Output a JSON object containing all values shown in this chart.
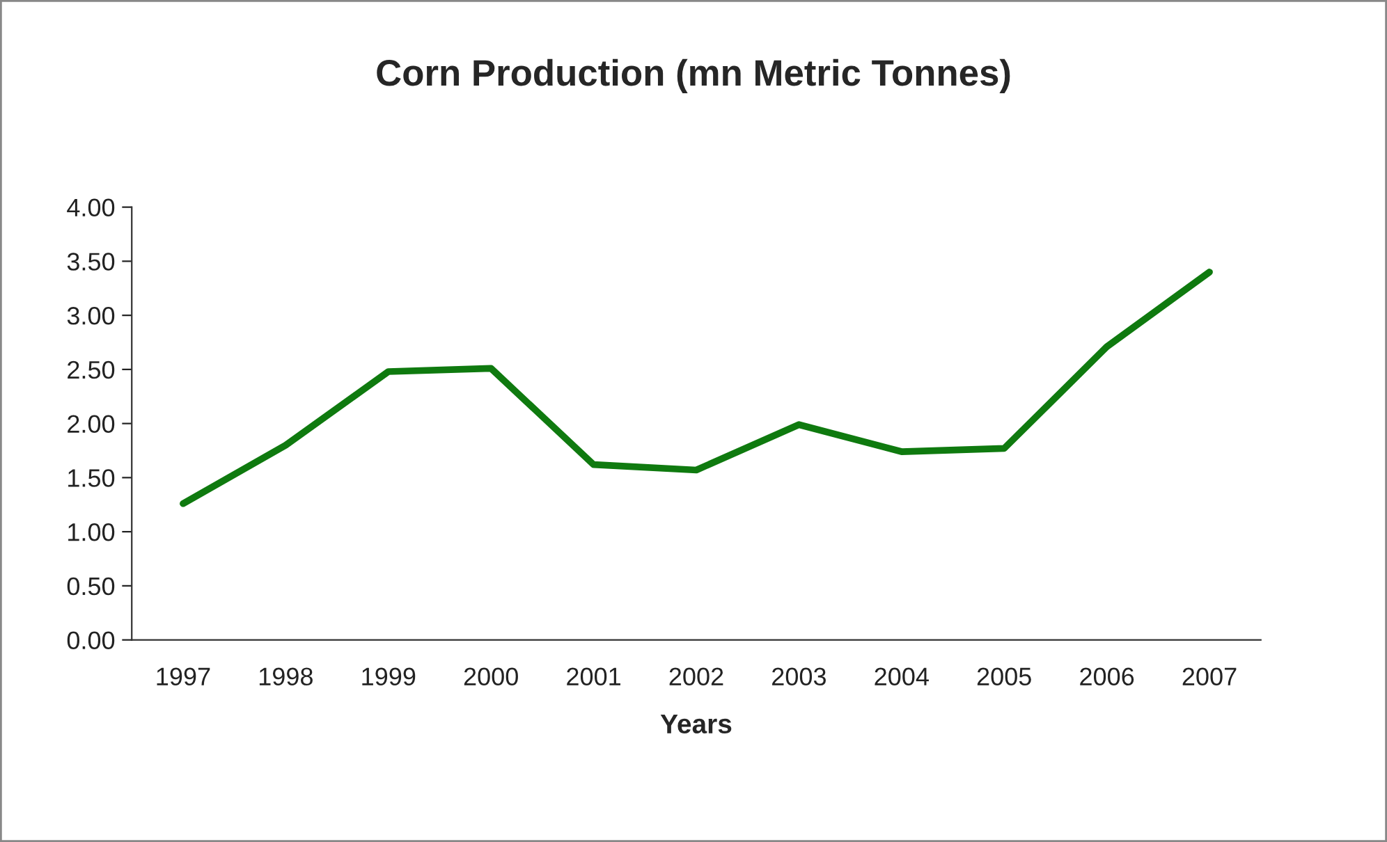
{
  "chart_data": {
    "type": "line",
    "title": "Corn Production (mn Metric Tonnes)",
    "xlabel": "Years",
    "categories": [
      "1997",
      "1998",
      "1999",
      "2000",
      "2001",
      "2002",
      "2003",
      "2004",
      "2005",
      "2006",
      "2007"
    ],
    "series": [
      {
        "color": "#0f7a0f",
        "values": [
          1.26,
          1.8,
          2.48,
          2.51,
          1.62,
          1.57,
          1.99,
          1.74,
          1.77,
          2.71,
          3.4
        ]
      }
    ],
    "ylim": [
      0,
      4
    ],
    "yticks": [
      {
        "value": 0,
        "label": "0.00"
      },
      {
        "value": 0.5,
        "label": "0.50"
      },
      {
        "value": 1,
        "label": "1.00"
      },
      {
        "value": 1.5,
        "label": "1.50"
      },
      {
        "value": 2,
        "label": "2.00"
      },
      {
        "value": 2.5,
        "label": "2.50"
      },
      {
        "value": 3,
        "label": "3.00"
      },
      {
        "value": 3.5,
        "label": "3.50"
      },
      {
        "value": 4,
        "label": "4.00"
      }
    ],
    "grid": false,
    "legend": false,
    "marker": "none",
    "line_style": "solid"
  }
}
